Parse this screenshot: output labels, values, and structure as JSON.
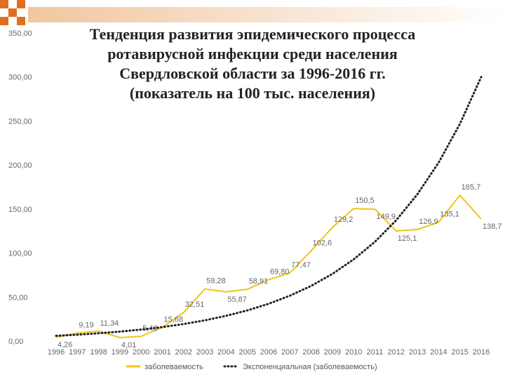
{
  "chart_data": {
    "type": "line",
    "title": [
      "Тенденция развития эпидемического процесса",
      "ротавирусной инфекции среди населения",
      "Свердловской области за 1996-2016 гг.",
      "(показатель на 100 тыс. населения)"
    ],
    "categories": [
      "1996",
      "1997",
      "1998",
      "1999",
      "2000",
      "2001",
      "2002",
      "2003",
      "2004",
      "2005",
      "2006",
      "2007",
      "2008",
      "2009",
      "2010",
      "2011",
      "2012",
      "2013",
      "2014",
      "2015",
      "2016"
    ],
    "series": [
      {
        "name": "заболеваемость",
        "color": "#f0c419",
        "style": "solid",
        "values": [
          4.26,
          9.19,
          11.34,
          4.01,
          5.43,
          15.68,
          32.51,
          59.28,
          55.87,
          58.91,
          69.8,
          77.47,
          102.6,
          129.2,
          150.5,
          149.9,
          125.1,
          126.9,
          135.1,
          165.7,
          138.7
        ],
        "value_labels": [
          "4,26",
          "9,19",
          "11,34",
          "4,01",
          "5,43",
          "15,68",
          "32,51",
          "59,28",
          "55,87",
          "58,91",
          "69,80",
          "77,47",
          "102,6",
          "129,2",
          "150,5",
          "149,9",
          "125,1",
          "126,9",
          "135,1",
          "165,7",
          "138,7"
        ]
      },
      {
        "name": "Экспоненциальная (заболеваемость)",
        "color": "#222222",
        "style": "dotted",
        "values": [
          6,
          7.3,
          8.9,
          10.8,
          13.1,
          15.9,
          19.4,
          23.6,
          28.7,
          34.9,
          42.4,
          51.6,
          62.7,
          76.3,
          92.8,
          112.8,
          137.2,
          166.8,
          202.8,
          246.7,
          300
        ]
      }
    ],
    "ylim": [
      0,
      350
    ],
    "yticks": [
      {
        "value": 0,
        "label": "0,00"
      },
      {
        "value": 50,
        "label": "50,00"
      },
      {
        "value": 100,
        "label": "100,00"
      },
      {
        "value": 150,
        "label": "150,00"
      },
      {
        "value": 200,
        "label": "200,00"
      },
      {
        "value": 250,
        "label": "250,00"
      },
      {
        "value": 300,
        "label": "300,00"
      },
      {
        "value": 350,
        "label": "350,00"
      }
    ],
    "grid": false,
    "legend": "bottom"
  }
}
